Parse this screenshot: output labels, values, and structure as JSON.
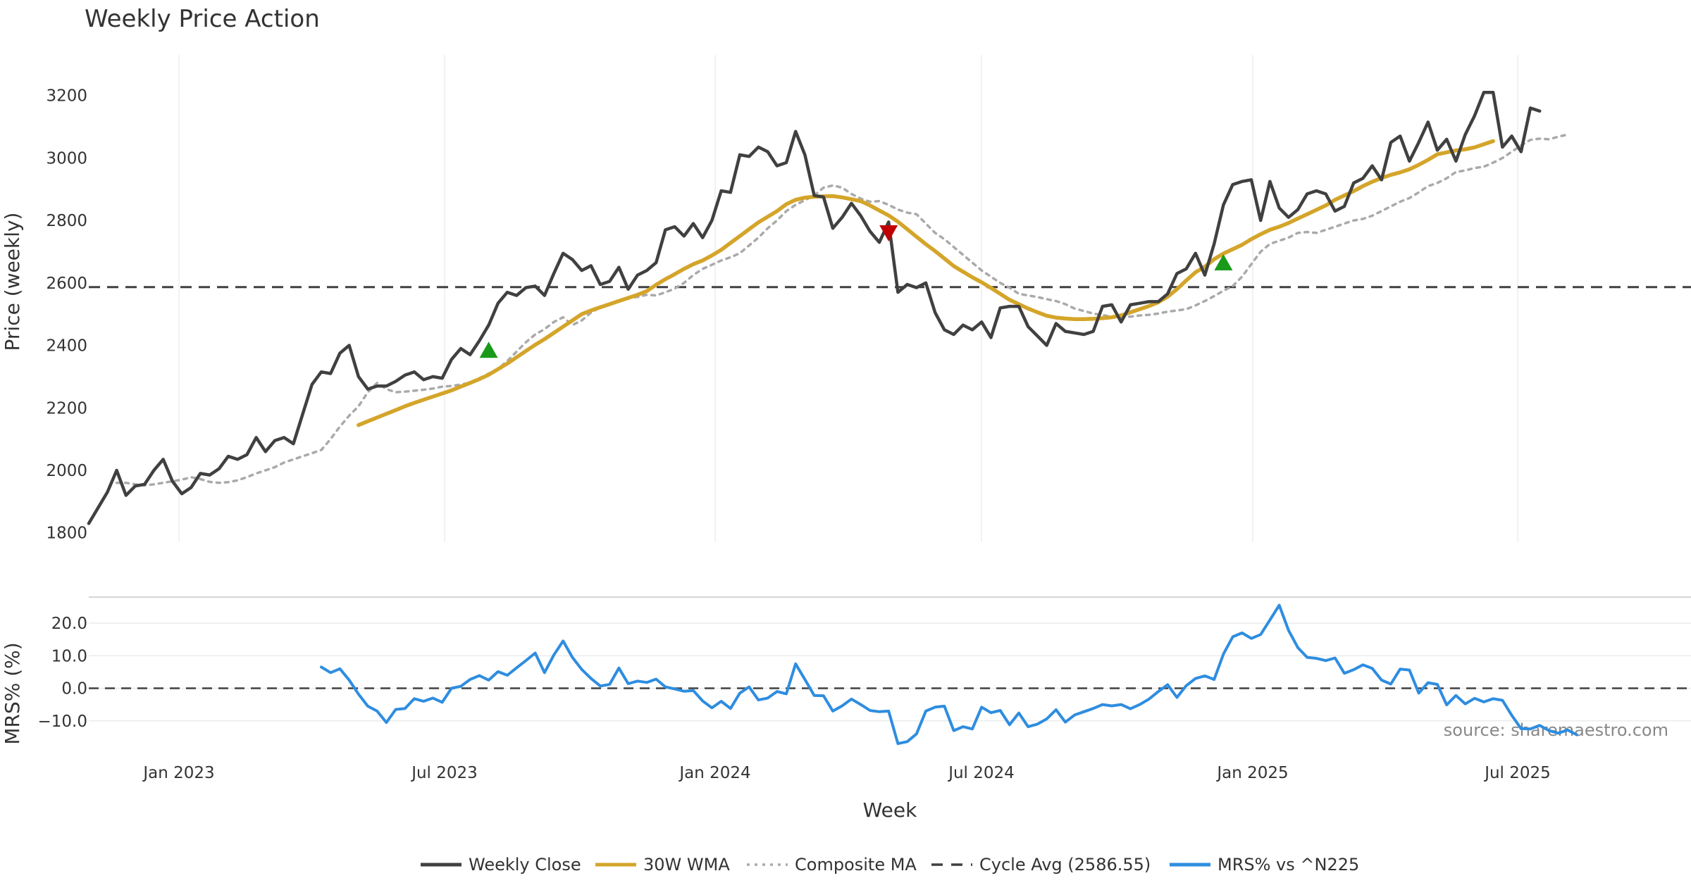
{
  "chart_data": {
    "type": "line",
    "title": "Weekly Price Action",
    "xlabel": "Week",
    "source_text": "source: sharemaestro.com",
    "x_ticks": [
      "Jan 2023",
      "Jul 2023",
      "Jan 2024",
      "Jul 2024",
      "Jan 2025",
      "Jul 2025"
    ],
    "colors": {
      "weekly_close": "#404040",
      "wma": "#d4a52a",
      "composite": "#aaaaaa",
      "cycle": "#404040",
      "mrs": "#2e8de0",
      "buy": "#1a9a1a",
      "sell": "#c00000",
      "grid": "#e8e8e8"
    },
    "price_panel": {
      "ylabel": "Price (weekly)",
      "ylim": [
        1770,
        3330
      ],
      "yticks": [
        1800,
        2000,
        2200,
        2400,
        2600,
        2800,
        3000,
        3200
      ],
      "cycle_avg": 2586.55,
      "series": [
        {
          "name": "Weekly Close",
          "key": "close",
          "start_week": 0,
          "values": [
            1830,
            1880,
            1930,
            2000,
            1920,
            1950,
            1955,
            2000,
            2035,
            1965,
            1925,
            1945,
            1990,
            1985,
            2005,
            2045,
            2035,
            2050,
            2105,
            2060,
            2095,
            2105,
            2085,
            2180,
            2275,
            2315,
            2310,
            2375,
            2400,
            2300,
            2260,
            2270,
            2270,
            2285,
            2305,
            2315,
            2290,
            2300,
            2295,
            2355,
            2390,
            2370,
            2415,
            2465,
            2535,
            2570,
            2560,
            2585,
            2590,
            2560,
            2630,
            2695,
            2675,
            2640,
            2655,
            2595,
            2605,
            2650,
            2580,
            2625,
            2640,
            2665,
            2770,
            2780,
            2750,
            2790,
            2745,
            2800,
            2895,
            2890,
            3010,
            3005,
            3035,
            3020,
            2975,
            2985,
            3085,
            3010,
            2880,
            2875,
            2775,
            2810,
            2855,
            2815,
            2765,
            2730,
            2795,
            2570,
            2595,
            2585,
            2600,
            2505,
            2450,
            2435,
            2465,
            2450,
            2475,
            2425,
            2520,
            2525,
            2525,
            2460,
            2430,
            2400,
            2470,
            2445,
            2440,
            2435,
            2445,
            2525,
            2530,
            2475,
            2530,
            2535,
            2540,
            2540,
            2565,
            2630,
            2645,
            2695,
            2625,
            2725,
            2850,
            2915,
            2925,
            2930,
            2800,
            2925,
            2840,
            2810,
            2835,
            2885,
            2895,
            2885,
            2830,
            2845,
            2920,
            2935,
            2975,
            2930,
            3050,
            3070,
            2990,
            3050,
            3115,
            3025,
            3060,
            2990,
            3075,
            3135,
            3210,
            3210,
            3035,
            3070,
            3020,
            3160,
            3150
          ]
        },
        {
          "name": "30W WMA",
          "key": "wma",
          "start_week": 29,
          "values": [
            2145,
            2157,
            2169,
            2181,
            2193,
            2205,
            2216,
            2226,
            2236,
            2246,
            2256,
            2268,
            2280,
            2292,
            2306,
            2324,
            2342,
            2362,
            2382,
            2402,
            2420,
            2440,
            2460,
            2480,
            2500,
            2512,
            2522,
            2532,
            2542,
            2552,
            2562,
            2574,
            2594,
            2612,
            2628,
            2645,
            2660,
            2672,
            2688,
            2706,
            2728,
            2750,
            2772,
            2794,
            2812,
            2830,
            2852,
            2866,
            2873,
            2876,
            2877,
            2878,
            2874,
            2868,
            2862,
            2848,
            2832,
            2816,
            2796,
            2772,
            2748,
            2724,
            2702,
            2678,
            2654,
            2636,
            2618,
            2602,
            2584,
            2565,
            2546,
            2532,
            2518,
            2506,
            2495,
            2489,
            2486,
            2484,
            2484,
            2485,
            2487,
            2490,
            2496,
            2506,
            2516,
            2526,
            2538,
            2556,
            2580,
            2608,
            2634,
            2652,
            2676,
            2694,
            2708,
            2722,
            2740,
            2756,
            2770,
            2780,
            2792,
            2806,
            2820,
            2834,
            2848,
            2866,
            2880,
            2894,
            2910,
            2924,
            2936,
            2946,
            2954,
            2964,
            2978,
            2994,
            3012,
            3018,
            3024,
            3028,
            3034,
            3044,
            3054
          ]
        },
        {
          "name": "Composite MA",
          "key": "composite",
          "start_week": 3,
          "values": [
            1960,
            1960,
            1955,
            1952,
            1955,
            1960,
            1965,
            1970,
            1978,
            1972,
            1963,
            1960,
            1962,
            1968,
            1978,
            1990,
            2000,
            2010,
            2025,
            2035,
            2045,
            2055,
            2065,
            2100,
            2140,
            2175,
            2205,
            2250,
            2280,
            2260,
            2250,
            2252,
            2255,
            2258,
            2262,
            2268,
            2270,
            2275,
            2280,
            2295,
            2310,
            2325,
            2350,
            2380,
            2410,
            2435,
            2452,
            2475,
            2490,
            2465,
            2480,
            2505,
            2522,
            2532,
            2540,
            2552,
            2555,
            2562,
            2560,
            2570,
            2582,
            2600,
            2625,
            2645,
            2658,
            2672,
            2682,
            2695,
            2720,
            2745,
            2775,
            2800,
            2830,
            2850,
            2865,
            2880,
            2905,
            2912,
            2905,
            2885,
            2870,
            2860,
            2862,
            2850,
            2835,
            2825,
            2820,
            2790,
            2760,
            2740,
            2715,
            2690,
            2665,
            2640,
            2620,
            2600,
            2585,
            2565,
            2560,
            2555,
            2548,
            2542,
            2532,
            2518,
            2510,
            2502,
            2497,
            2492,
            2490,
            2492,
            2496,
            2498,
            2502,
            2508,
            2512,
            2516,
            2528,
            2542,
            2558,
            2575,
            2590,
            2620,
            2660,
            2700,
            2725,
            2735,
            2745,
            2760,
            2763,
            2760,
            2770,
            2780,
            2790,
            2800,
            2805,
            2815,
            2830,
            2845,
            2860,
            2872,
            2890,
            2910,
            2920,
            2935,
            2955,
            2960,
            2968,
            2972,
            2985,
            3000,
            3020,
            3040,
            3058,
            3062,
            3060,
            3068,
            3075
          ]
        }
      ],
      "signals": [
        {
          "type": "buy",
          "week": 43,
          "value": 2385
        },
        {
          "type": "sell",
          "week": 86,
          "value": 2760
        },
        {
          "type": "buy",
          "week": 122,
          "value": 2665
        }
      ]
    },
    "mrs_panel": {
      "ylabel": "MRS% (%)",
      "ylim": [
        -20,
        28
      ],
      "yticks": [
        20.0,
        10.0,
        0.0,
        -10.0
      ],
      "ytick_labels": [
        "20.0",
        "10.0",
        "0.0",
        "−10.0"
      ],
      "series": [
        {
          "name": "MRS% vs ^N225",
          "key": "mrs",
          "start_week": 25,
          "values": [
            6.5,
            4.8,
            6.0,
            2.5,
            -1.8,
            -5.5,
            -7.0,
            -10.5,
            -6.5,
            -6.2,
            -3.2,
            -4.0,
            -3.0,
            -4.3,
            0.0,
            0.6,
            2.7,
            3.9,
            2.5,
            5.1,
            4.0,
            6.3,
            8.5,
            10.8,
            4.8,
            10.2,
            14.5,
            9.5,
            5.8,
            3.0,
            0.7,
            1.2,
            6.2,
            1.4,
            2.2,
            1.8,
            2.8,
            0.4,
            -0.2,
            -0.9,
            -0.7,
            -3.9,
            -6.0,
            -4.0,
            -6.2,
            -1.5,
            0.4,
            -3.6,
            -3.0,
            -1.0,
            -1.7,
            7.5,
            2.7,
            -2.2,
            -2.3,
            -7.0,
            -5.4,
            -3.3,
            -5.0,
            -6.8,
            -7.2,
            -7.0,
            -17.0,
            -16.4,
            -14.0,
            -7.0,
            -5.8,
            -5.5,
            -13.0,
            -11.8,
            -12.5,
            -5.8,
            -7.5,
            -6.8,
            -11.2,
            -7.6,
            -11.8,
            -11.0,
            -9.4,
            -6.6,
            -10.4,
            -8.2,
            -7.2,
            -6.2,
            -5.0,
            -5.4,
            -5.0,
            -6.3,
            -5.0,
            -3.3,
            -1.0,
            1.1,
            -2.8,
            0.8,
            3.0,
            3.8,
            2.7,
            10.5,
            15.8,
            17.0,
            15.3,
            16.5,
            21.0,
            25.5,
            17.8,
            12.5,
            9.5,
            9.2,
            8.5,
            9.3,
            4.6,
            5.7,
            7.2,
            6.1,
            2.5,
            1.3,
            5.9,
            5.6,
            -1.5,
            1.7,
            1.2,
            -5.1,
            -2.2,
            -4.8,
            -3.1,
            -4.2,
            -3.2,
            -3.7,
            -8.3,
            -12.4,
            -12.5,
            -11.4,
            -13.0,
            -13.8,
            -12.8,
            -14.3
          ]
        }
      ]
    },
    "legend": [
      {
        "label": "Weekly Close",
        "style": "solid",
        "key": "weekly_close"
      },
      {
        "label": "30W WMA",
        "style": "solid",
        "key": "wma"
      },
      {
        "label": "Composite MA",
        "style": "dotted",
        "key": "composite"
      },
      {
        "label": "Cycle Avg (2586.55)",
        "style": "dashed",
        "key": "cycle"
      },
      {
        "label": "MRS% vs ^N225",
        "style": "solid",
        "key": "mrs"
      }
    ]
  }
}
